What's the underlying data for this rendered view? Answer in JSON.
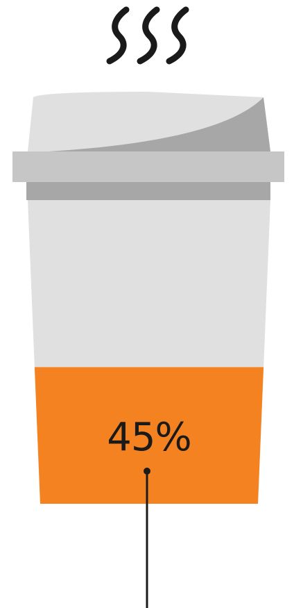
{
  "infographic": {
    "fill_percent": 45,
    "label": "45%",
    "colors": {
      "fill": "#f58220",
      "cup_body": "#e0e0e0",
      "lid_light": "#e0e0e0",
      "lid_dark": "#a7a7a7",
      "lid_rim": "#c6c6c6",
      "lid_band": "#a7a7a7",
      "steam": "#1a1a1a",
      "pointer": "#1a1a1a"
    },
    "icons": [
      "steam-icon",
      "coffee-cup-icon"
    ]
  }
}
